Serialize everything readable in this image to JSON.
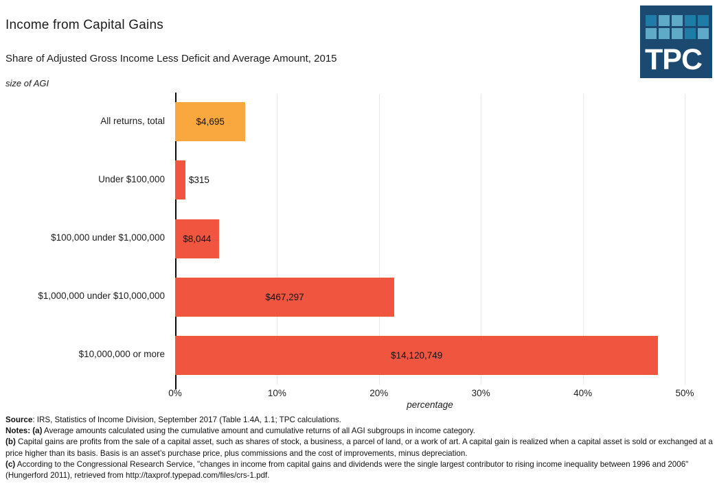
{
  "header": {
    "title": "Income from Capital Gains",
    "subtitle": "Share of Adjusted Gross Income Less Deficit and Average Amount, 2015",
    "logo_text": "TPC"
  },
  "colors": {
    "highlight_bar": "#F9A840",
    "default_bar": "#F05540",
    "logo_background": "#1B4970",
    "logo_square_medium": "#1E7CA6",
    "logo_square_light": "#5FAAC6",
    "gridline": "#E8E8E8",
    "axis": "#0A0A0A"
  },
  "logo_squares": [
    [
      "m",
      "l",
      "l",
      "m",
      "m"
    ],
    [
      "l",
      "l",
      "l",
      "m",
      "l"
    ]
  ],
  "chart_data": {
    "type": "bar",
    "orientation": "horizontal",
    "title": "Income from Capital Gains",
    "subtitle": "Share of Adjusted Gross Income Less Deficit and Average Amount, 2015",
    "categories": [
      "All returns, total",
      "Under $100,000",
      "$100,000 under $1,000,000",
      "$1,000,000 under $10,000,000",
      "$10,000,000 or more"
    ],
    "series": [
      {
        "name": "Share of adjusted gross income less deficit (%)",
        "values": [
          6.9,
          1.0,
          4.3,
          21.5,
          47.4
        ]
      }
    ],
    "bar_labels": [
      "$4,695",
      "$315",
      "$8,044",
      "$467,297",
      "$14,120,749"
    ],
    "bar_label_positions": [
      "inside",
      "outside",
      "inside",
      "inside",
      "inside"
    ],
    "bar_colors": [
      "#F9A840",
      "#F05540",
      "#F05540",
      "#F05540",
      "#F05540"
    ],
    "xlabel": "percentage",
    "ylabel": "size of AGI",
    "x_ticks": [
      "0%",
      "10%",
      "20%",
      "30%",
      "40%",
      "50%"
    ],
    "xlim": [
      0,
      50
    ],
    "grid": "vertical",
    "legend": "none"
  },
  "footer": {
    "notes": [
      {
        "prefix": "Source",
        "text": ": IRS, Statistics of Income Division, September 2017 (Table 1.4A, 1.1; TPC calculations."
      },
      {
        "prefix": "Notes: (a)",
        "text": " Average amounts calculated using the cumulative amount and cumulative returns of all AGI subgroups in income category."
      },
      {
        "prefix": "(b)",
        "text": " Capital gains are profits from the sale of a capital asset, such as shares of stock, a business, a parcel of land, or a work of art. A capital gain is realized when a capital asset is sold or exchanged at a price higher than its basis. Basis is an asset’s purchase price, plus commissions and the cost of improvements, minus depreciation."
      },
      {
        "prefix": "(c)",
        "text": " According to the Congressional Research Service, \"changes in income from capital gains and dividends were the single largest contributor to rising income inequality between 1996 and 2006\" (Hungerford 2011), retrieved from http://taxprof.typepad.com/files/crs-1.pdf."
      }
    ]
  }
}
